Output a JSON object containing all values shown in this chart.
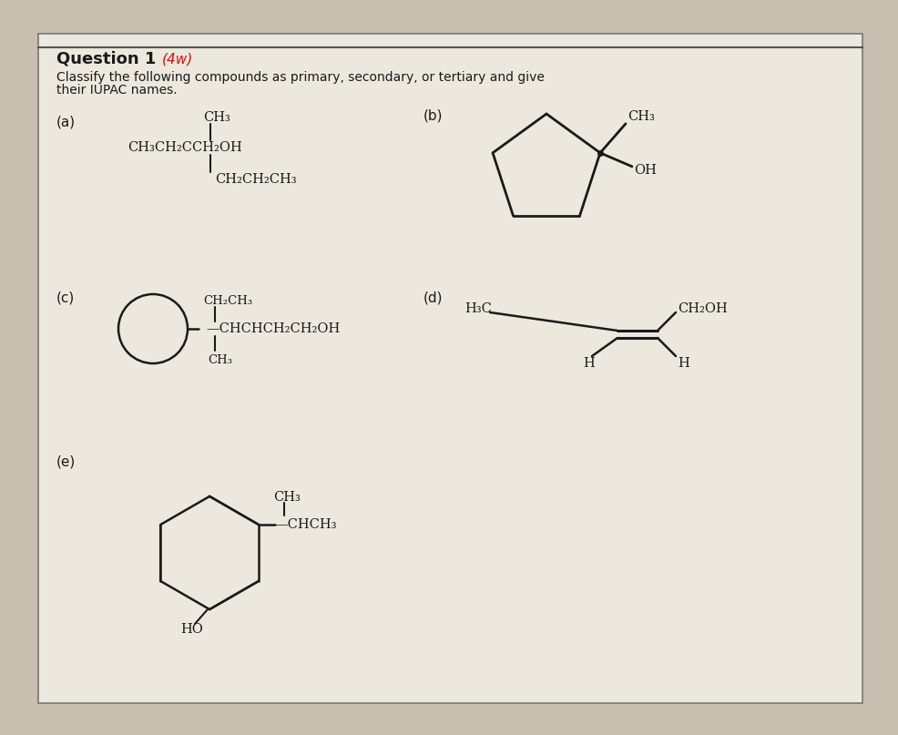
{
  "bg_color": "#c8bfb0",
  "paper_color": "#ede8de",
  "text_color": "#1a1a1a",
  "title": "Question 1",
  "title_hw": "(4w)",
  "instruction1": "Classify the following compounds as primary, secondary, or tertiary and give",
  "instruction2": "their IUPAC names.",
  "label_fontsize": 11,
  "body_fontsize": 10.5,
  "small_fontsize": 9.5
}
